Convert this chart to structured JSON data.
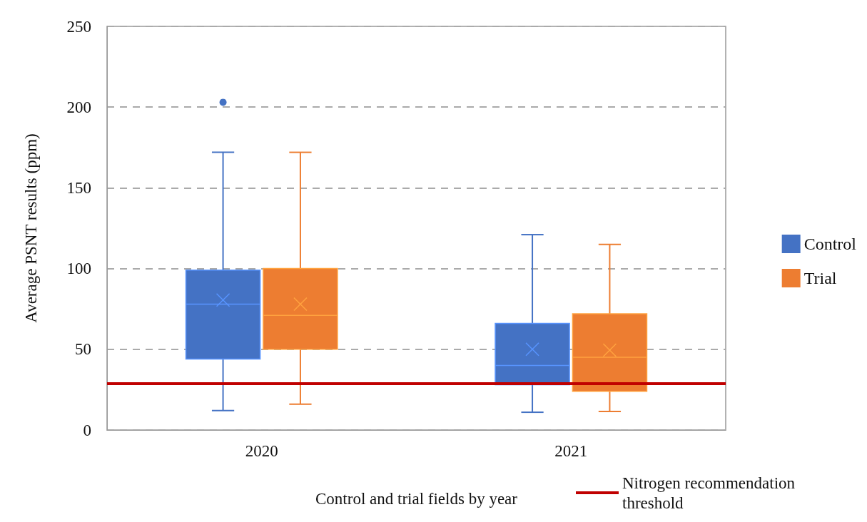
{
  "chart_data": {
    "type": "box",
    "xlabel": "Control and trial fields by year",
    "ylabel": "Average PSNT results (ppm)",
    "categories": [
      "2020",
      "2021"
    ],
    "ylim": [
      0,
      250
    ],
    "yticks": [
      0,
      50,
      100,
      150,
      200,
      250
    ],
    "grid": "y",
    "legend": "right",
    "series": [
      {
        "name": "Control",
        "color": "#4472c4",
        "boxes": [
          {
            "low": 12,
            "q1": 44,
            "median": 78,
            "q3": 99,
            "high": 172,
            "mean": 80.5,
            "outliers": [
              203
            ]
          },
          {
            "low": 11,
            "q1": 28,
            "median": 40,
            "q3": 66,
            "high": 121,
            "mean": 50
          }
        ]
      },
      {
        "name": "Trial",
        "color": "#ed7d31",
        "boxes": [
          {
            "low": 16,
            "q1": 50,
            "median": 71,
            "q3": 100,
            "high": 172,
            "mean": 78
          },
          {
            "low": 11.5,
            "q1": 24,
            "median": 45,
            "q3": 72,
            "high": 115,
            "mean": 49.5
          }
        ]
      }
    ],
    "ref_lines": [
      {
        "axis": "y",
        "value": 29,
        "label": "Nitrogen recommendation threshold",
        "color": "#c00000"
      }
    ]
  }
}
